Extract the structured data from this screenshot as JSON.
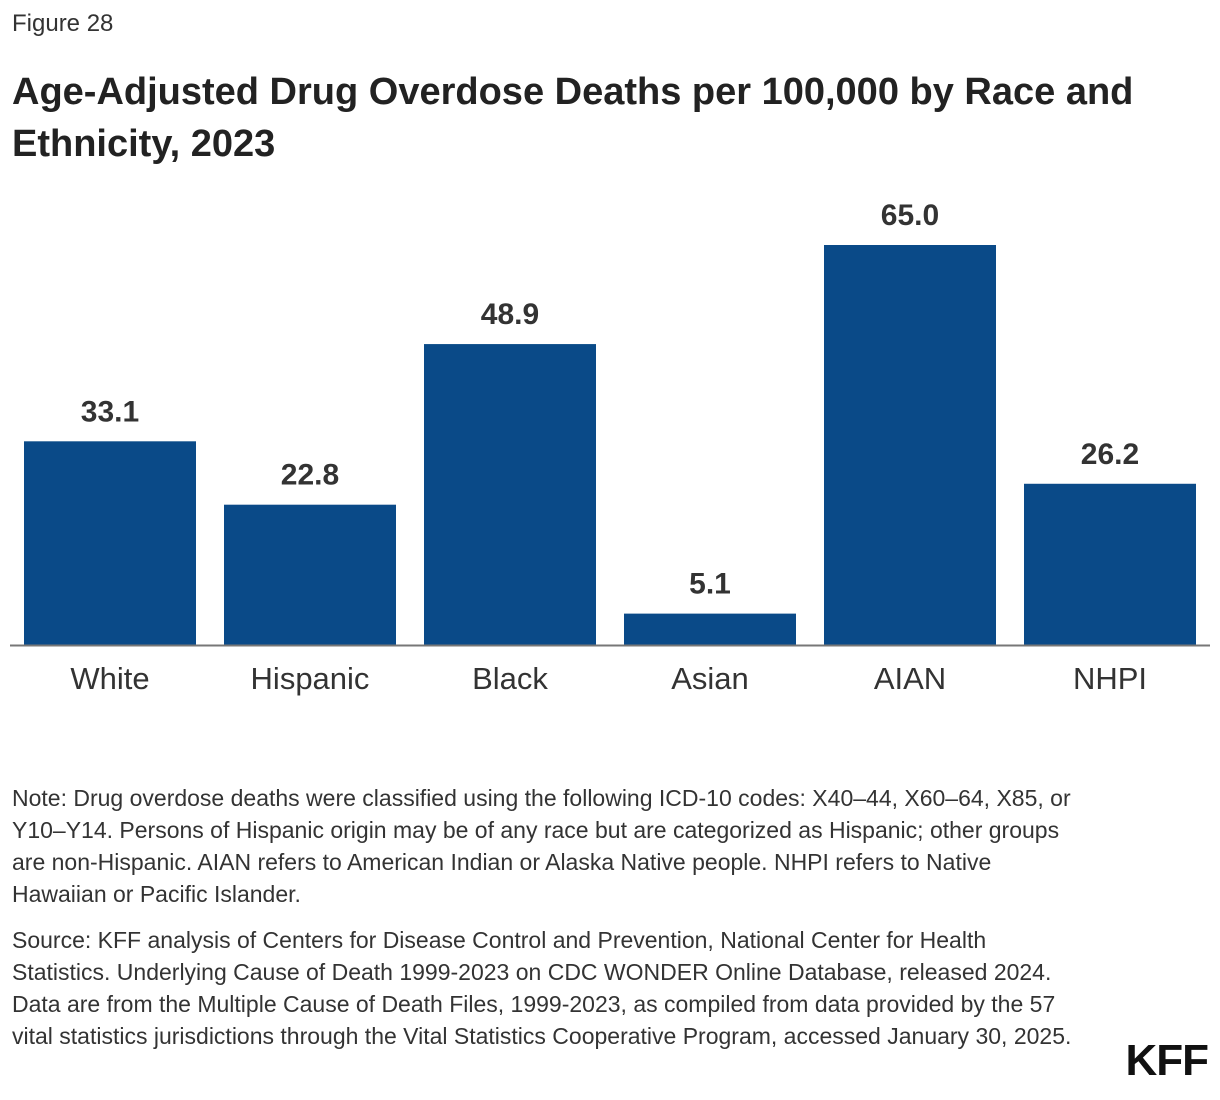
{
  "chart_data": {
    "type": "bar",
    "figure_label": "Figure 28",
    "title": "Age-Adjusted Drug Overdose Deaths per 100,000 by Race and Ethnicity, 2023",
    "categories": [
      "White",
      "Hispanic",
      "Black",
      "Asian",
      "AIAN",
      "NHPI"
    ],
    "values": [
      33.1,
      22.8,
      48.9,
      5.1,
      65.0,
      26.2
    ],
    "value_labels": [
      "33.1",
      "22.8",
      "48.9",
      "5.1",
      "65.0",
      "26.2"
    ],
    "color": "#0a4a88",
    "note": "Note: Drug overdose deaths were classified using the following ICD-10 codes: X40–44, X60–64, X85, or Y10–Y14. Persons of Hispanic origin may be of any race but are categorized as Hispanic; other groups are non-Hispanic. AIAN refers to American Indian or Alaska Native people. NHPI refers to Native Hawaiian or Pacific Islander.",
    "source": "Source: KFF analysis of Centers for Disease Control and Prevention, National Center for Health Statistics. Underlying Cause of Death 1999-2023 on CDC WONDER Online Database, released 2024. Data are from the Multiple Cause of Death Files, 1999-2023, as compiled from data provided by the 57 vital statistics jurisdictions through the Vital Statistics Cooperative Program, accessed January 30, 2025.",
    "logo": "KFF"
  }
}
